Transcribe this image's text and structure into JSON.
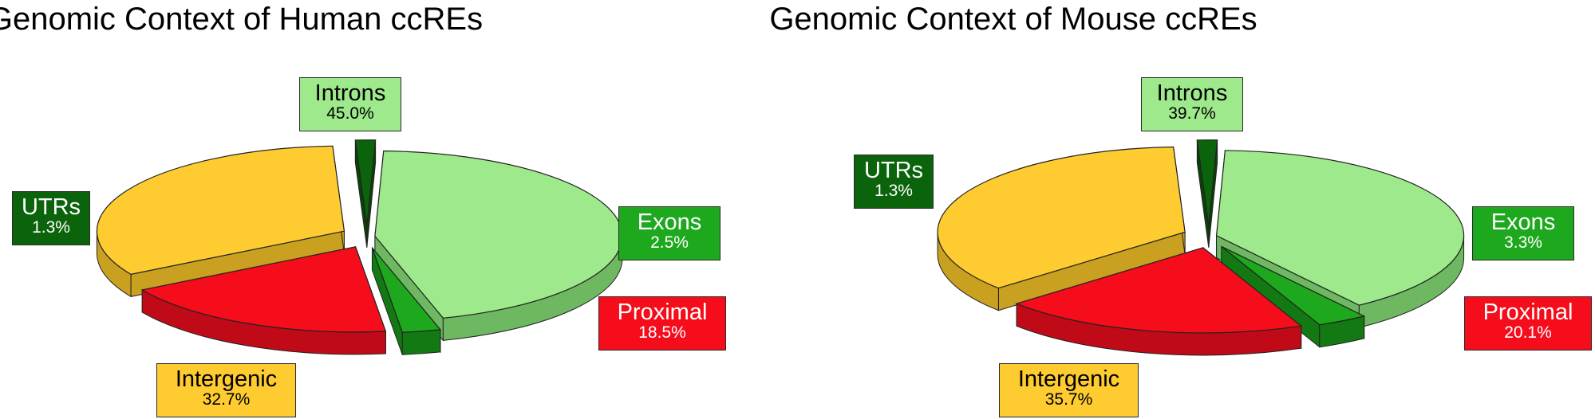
{
  "chart_data": [
    {
      "type": "pie",
      "title": "Genomic Context of Human ccREs",
      "slices": [
        {
          "label": "Introns",
          "value": 45.0,
          "display": "45.0%",
          "color": "#9de98b",
          "side": "#6fb862"
        },
        {
          "label": "Exons",
          "value": 2.5,
          "display": "2.5%",
          "color": "#1ea81e",
          "side": "#137a13"
        },
        {
          "label": "Proximal",
          "value": 18.5,
          "display": "18.5%",
          "color": "#f50d1b",
          "side": "#c10a18"
        },
        {
          "label": "Intergenic",
          "value": 32.7,
          "display": "32.7%",
          "color": "#fecb30",
          "side": "#c9a020"
        },
        {
          "label": "UTRs",
          "value": 1.3,
          "display": "1.3%",
          "color": "#0b640b",
          "side": "#074407"
        }
      ]
    },
    {
      "type": "pie",
      "title": "Genomic Context of Mouse ccREs",
      "slices": [
        {
          "label": "Introns",
          "value": 39.7,
          "display": "39.7%",
          "color": "#9de98b",
          "side": "#6fb862"
        },
        {
          "label": "Exons",
          "value": 3.3,
          "display": "3.3%",
          "color": "#1ea81e",
          "side": "#137a13"
        },
        {
          "label": "Proximal",
          "value": 20.1,
          "display": "20.1%",
          "color": "#f50d1b",
          "side": "#c10a18"
        },
        {
          "label": "Intergenic",
          "value": 35.7,
          "display": "35.7%",
          "color": "#fecb30",
          "side": "#c9a020"
        },
        {
          "label": "UTRs",
          "value": 1.3,
          "display": "1.3%",
          "color": "#0b640b",
          "side": "#074407"
        }
      ]
    }
  ]
}
